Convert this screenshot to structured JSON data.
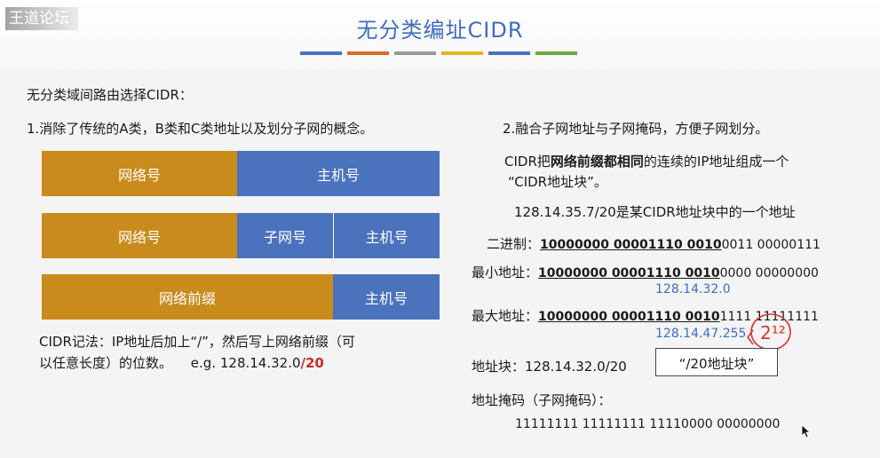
{
  "watermark": "王道论坛",
  "title": "无分类编址CIDR",
  "title_bar_colors": [
    "#4a72bd",
    "#d86a2b",
    "#9a9a9a",
    "#e8b321",
    "#4a72bd",
    "#6fa740"
  ],
  "left": {
    "intro": "无分类域间路由选择CIDR：",
    "point1": "1.消除了传统的A类，B类和C类地址以及划分子网的概念。",
    "diagram1": {
      "network": "网络号",
      "host": "主机号"
    },
    "diagram2": {
      "network": "网络号",
      "subnet": "子网号",
      "host": "主机号"
    },
    "diagram3": {
      "prefix": "网络前缀",
      "host": "主机号"
    },
    "notation_line1": "CIDR记法：IP地址后加上“/”，然后写上网络前缀（可",
    "notation_line2_prefix": "以任意长度）的位数。",
    "notation_example": "e.g. 128.14.32.0",
    "notation_example_suffix": "/20"
  },
  "right": {
    "point2": "2.融合子网地址与子网掩码，方便子网划分。",
    "desc_line1_pre": "CIDR把",
    "desc_line1_bold": "网络前缀都相同",
    "desc_line1_post": "的连续的IP地址组成一个",
    "desc_line2": "“CIDR地址块”。",
    "example": "128.14.35.7/20是某CIDR地址块中的一个地址",
    "binary_label": "二进制：",
    "binary_prefix": "10000000  00001110  0010",
    "binary_rest": "0011  00000111",
    "min_label": "最小地址：",
    "min_prefix": "10000000  00001110  0010",
    "min_rest": "0000  00000000",
    "min_dotted": "128.14.32.0",
    "max_label": "最大地址：",
    "max_prefix": "10000000  00001110  0010",
    "max_rest": "1111  11111111",
    "max_dotted": "128.14.47.255",
    "annotation": "2¹²",
    "block_label": "地址块：128.14.32.0/20",
    "block_box": "“/20地址块”",
    "mask_label": "地址掩码（子网掩码）：",
    "mask_value": "11111111  11111111  11110000  00000000"
  }
}
